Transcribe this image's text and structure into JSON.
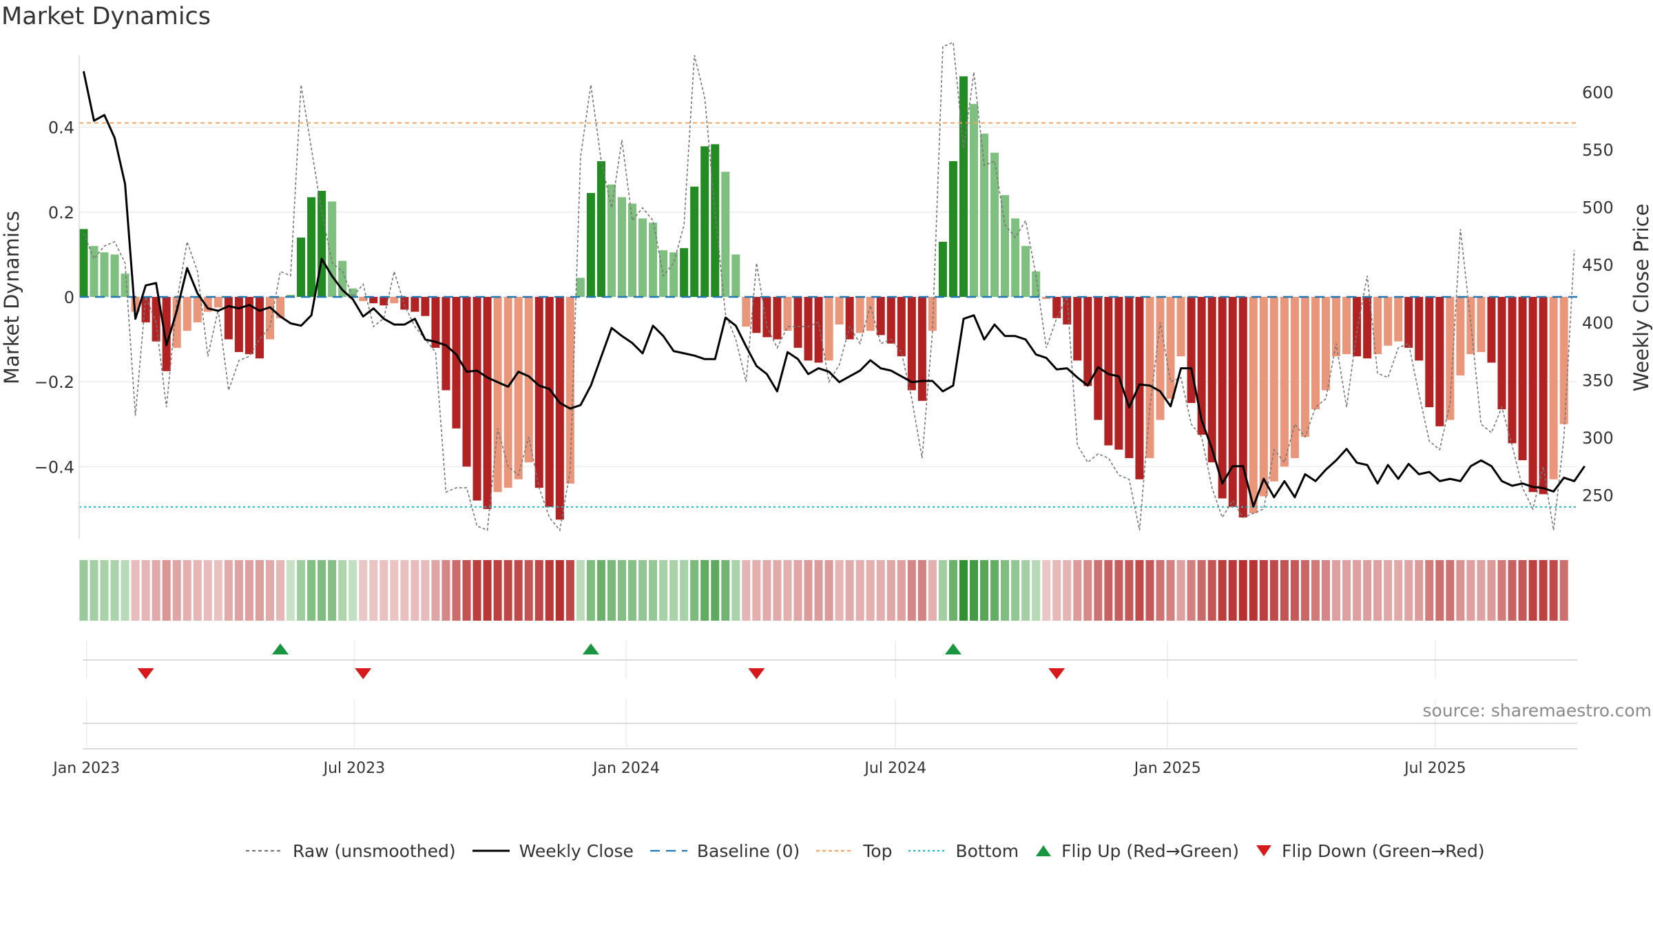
{
  "title": "Market Dynamics",
  "source": "source: sharemaestro.com",
  "chart_data": {
    "type": "bar",
    "title": "Market Dynamics",
    "ylabel": "Market Dynamics",
    "y2label": "Weekly Close Price",
    "ylim": [
      -0.57,
      0.57
    ],
    "y2lim": [
      212,
      632
    ],
    "yticks": [
      0.4,
      0.2,
      0,
      -0.2,
      -0.4
    ],
    "ytick_labels": [
      "0.4",
      "0.2",
      "0",
      "−0.2",
      "−0.4"
    ],
    "y2ticks": [
      600,
      550,
      500,
      450,
      400,
      350,
      300,
      250
    ],
    "xlim": [
      "2022-12-27",
      "2025-10-05"
    ],
    "xticks": [
      "2023-01-01",
      "2023-07-01",
      "2024-01-01",
      "2024-07-01",
      "2025-01-01",
      "2025-07-01"
    ],
    "xtick_labels": [
      "Jan 2023",
      "Jul 2023",
      "Jan 2024",
      "Jul 2024",
      "Jan 2025",
      "Jul 2025"
    ],
    "start_date": "2022-12-30",
    "week_step_days": 7,
    "top_level": 0.41,
    "bottom_level": -0.495,
    "baseline": 0,
    "grid": true,
    "legend_position": "bottom",
    "colors": {
      "strong_green": "#228b22",
      "light_green": "#7fbf7f",
      "strong_red": "#b22222",
      "light_red": "#e9967a",
      "baseline": "#1f77b4",
      "top": "#f4a460",
      "bottom": "#17becf",
      "close": "#000000",
      "raw": "#777777",
      "flip_up": "#1a9641",
      "flip_down": "#d7191c"
    },
    "bars": [
      0.16,
      0.12,
      0.105,
      0.1,
      0.055,
      -0.035,
      -0.06,
      -0.105,
      -0.175,
      -0.12,
      -0.08,
      -0.06,
      -0.035,
      -0.025,
      -0.1,
      -0.13,
      -0.135,
      -0.145,
      -0.1,
      -0.05,
      0.005,
      0.14,
      0.235,
      0.25,
      0.225,
      0.085,
      0.02,
      -0.01,
      -0.015,
      -0.02,
      -0.015,
      -0.03,
      -0.035,
      -0.045,
      -0.12,
      -0.22,
      -0.31,
      -0.4,
      -0.48,
      -0.5,
      -0.46,
      -0.45,
      -0.43,
      -0.39,
      -0.45,
      -0.495,
      -0.525,
      -0.44,
      0.045,
      0.245,
      0.32,
      0.265,
      0.235,
      0.22,
      0.185,
      0.175,
      0.11,
      0.105,
      0.115,
      0.26,
      0.355,
      0.36,
      0.295,
      0.1,
      -0.07,
      -0.085,
      -0.095,
      -0.1,
      -0.08,
      -0.12,
      -0.15,
      -0.155,
      -0.15,
      -0.065,
      -0.1,
      -0.085,
      -0.08,
      -0.09,
      -0.11,
      -0.14,
      -0.22,
      -0.245,
      -0.08,
      0.13,
      0.32,
      0.52,
      0.455,
      0.385,
      0.34,
      0.24,
      0.185,
      0.12,
      0.06,
      -0.005,
      -0.05,
      -0.065,
      -0.15,
      -0.21,
      -0.29,
      -0.35,
      -0.36,
      -0.38,
      -0.43,
      -0.38,
      -0.29,
      -0.24,
      -0.14,
      -0.25,
      -0.325,
      -0.39,
      -0.475,
      -0.495,
      -0.52,
      -0.51,
      -0.47,
      -0.435,
      -0.4,
      -0.38,
      -0.33,
      -0.265,
      -0.22,
      -0.14,
      -0.135,
      -0.14,
      -0.145,
      -0.135,
      -0.115,
      -0.105,
      -0.12,
      -0.15,
      -0.26,
      -0.305,
      -0.29,
      -0.185,
      -0.135,
      -0.13,
      -0.155,
      -0.265,
      -0.345,
      -0.385,
      -0.46,
      -0.465,
      -0.43,
      -0.3
    ],
    "close": [
      618,
      575,
      580,
      560,
      520,
      403,
      432,
      434,
      380,
      410,
      447,
      425,
      412,
      410,
      414,
      412,
      415,
      410,
      413,
      405,
      399,
      397,
      406,
      455,
      440,
      428,
      420,
      405,
      412,
      403,
      398,
      398,
      403,
      385,
      383,
      380,
      372,
      357,
      358,
      352,
      348,
      344,
      357,
      353,
      345,
      342,
      330,
      325,
      328,
      345,
      370,
      395,
      388,
      382,
      373,
      397,
      388,
      375,
      373,
      371,
      368,
      368,
      404,
      397,
      379,
      362,
      355,
      340,
      374,
      368,
      355,
      360,
      357,
      348,
      353,
      358,
      367,
      360,
      358,
      353,
      348,
      349,
      349,
      340,
      345,
      403,
      406,
      385,
      398,
      388,
      388,
      385,
      372,
      369,
      359,
      360,
      352,
      345,
      361,
      355,
      353,
      326,
      346,
      345,
      340,
      327,
      360,
      360,
      315,
      290,
      260,
      275,
      275,
      240,
      264,
      248,
      262,
      248,
      268,
      262,
      272,
      280,
      290,
      278,
      276,
      260,
      276,
      264,
      277,
      268,
      270,
      262,
      264,
      262,
      275,
      280,
      275,
      262,
      258,
      260,
      257,
      256,
      253,
      265,
      262,
      275
    ],
    "raw": [
      0.15,
      0.09,
      0.12,
      0.13,
      0.08,
      -0.28,
      0.0,
      -0.06,
      -0.26,
      -0.01,
      0.13,
      0.06,
      -0.14,
      -0.03,
      -0.22,
      -0.15,
      -0.14,
      -0.1,
      -0.07,
      0.06,
      0.05,
      0.5,
      0.35,
      0.2,
      0.08,
      0.06,
      0.0,
      0.03,
      -0.07,
      -0.05,
      0.06,
      -0.02,
      -0.07,
      -0.1,
      -0.13,
      -0.46,
      -0.45,
      -0.45,
      -0.54,
      -0.55,
      -0.31,
      -0.4,
      -0.42,
      -0.33,
      -0.45,
      -0.52,
      -0.55,
      -0.41,
      0.33,
      0.5,
      0.32,
      0.21,
      0.37,
      0.18,
      0.21,
      0.18,
      0.05,
      0.08,
      0.17,
      0.57,
      0.47,
      0.2,
      -0.04,
      -0.1,
      -0.2,
      0.08,
      -0.07,
      -0.12,
      -0.07,
      -0.07,
      -0.07,
      -0.06,
      -0.2,
      -0.16,
      -0.07,
      -0.11,
      -0.02,
      -0.11,
      -0.1,
      -0.13,
      -0.24,
      -0.38,
      -0.08,
      0.59,
      0.6,
      0.35,
      0.53,
      0.31,
      0.32,
      0.17,
      0.14,
      0.18,
      0.05,
      -0.12,
      -0.05,
      0.0,
      -0.35,
      -0.39,
      -0.37,
      -0.38,
      -0.42,
      -0.43,
      -0.55,
      -0.26,
      -0.06,
      -0.2,
      -0.19,
      -0.3,
      -0.33,
      -0.45,
      -0.52,
      -0.48,
      -0.52,
      -0.51,
      -0.5,
      -0.36,
      -0.39,
      -0.3,
      -0.33,
      -0.26,
      -0.24,
      -0.11,
      -0.26,
      -0.08,
      0.05,
      -0.18,
      -0.19,
      -0.12,
      -0.11,
      -0.23,
      -0.34,
      -0.36,
      -0.25,
      0.16,
      -0.06,
      -0.3,
      -0.32,
      -0.26,
      -0.35,
      -0.45,
      -0.5,
      -0.4,
      -0.55,
      -0.33,
      0.11
    ],
    "flip_up_dates": [
      "2023-05-12",
      "2023-12-08",
      "2024-08-09"
    ],
    "flip_down_dates": [
      "2023-02-10",
      "2023-07-07",
      "2024-03-29",
      "2024-10-18"
    ],
    "legend": [
      {
        "label": "Raw (unsmoothed)",
        "style": "dashed-line",
        "color": "#777777"
      },
      {
        "label": "Weekly Close",
        "style": "solid-line",
        "color": "#000000"
      },
      {
        "label": "Baseline (0)",
        "style": "long-dash-line",
        "color": "#1f77b4"
      },
      {
        "label": "Top",
        "style": "dashed-line",
        "color": "#f4a460"
      },
      {
        "label": "Bottom",
        "style": "dotted-line",
        "color": "#17becf"
      },
      {
        "label": "Flip Up (Red→Green)",
        "style": "triangle-up",
        "color": "#1a9641"
      },
      {
        "label": "Flip Down (Green→Red)",
        "style": "triangle-down",
        "color": "#d7191c"
      }
    ]
  }
}
